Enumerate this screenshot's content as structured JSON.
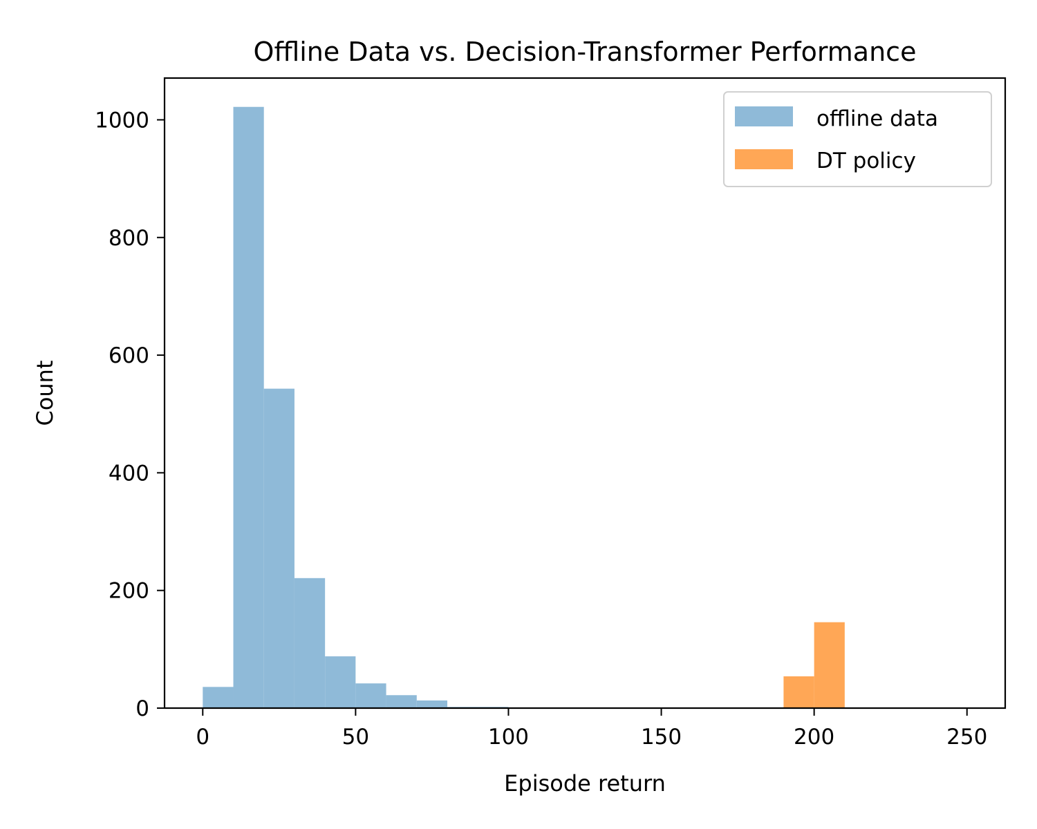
{
  "chart_data": {
    "type": "bar",
    "title": "Offline Data vs. Decision-Transformer Performance",
    "xlabel": "Episode return",
    "ylabel": "Count",
    "xlim": [
      -12.5,
      262.5
    ],
    "ylim": [
      0,
      1071
    ],
    "xticks": [
      0,
      50,
      100,
      150,
      200,
      250
    ],
    "yticks": [
      0,
      200,
      400,
      600,
      800,
      1000
    ],
    "grid": false,
    "legend_position": "top-right",
    "bin_width": 10,
    "series": [
      {
        "name": "offline data",
        "color": "#8fbad8",
        "bins": [
          {
            "x0": 0,
            "value": 36
          },
          {
            "x0": 10,
            "value": 1022
          },
          {
            "x0": 20,
            "value": 543
          },
          {
            "x0": 30,
            "value": 221
          },
          {
            "x0": 40,
            "value": 88
          },
          {
            "x0": 50,
            "value": 42
          },
          {
            "x0": 60,
            "value": 22
          },
          {
            "x0": 70,
            "value": 13
          },
          {
            "x0": 80,
            "value": 2
          },
          {
            "x0": 90,
            "value": 2
          }
        ]
      },
      {
        "name": "DT policy",
        "color": "#ffa756",
        "bins": [
          {
            "x0": 190,
            "value": 54
          },
          {
            "x0": 200,
            "value": 146
          }
        ]
      }
    ]
  }
}
